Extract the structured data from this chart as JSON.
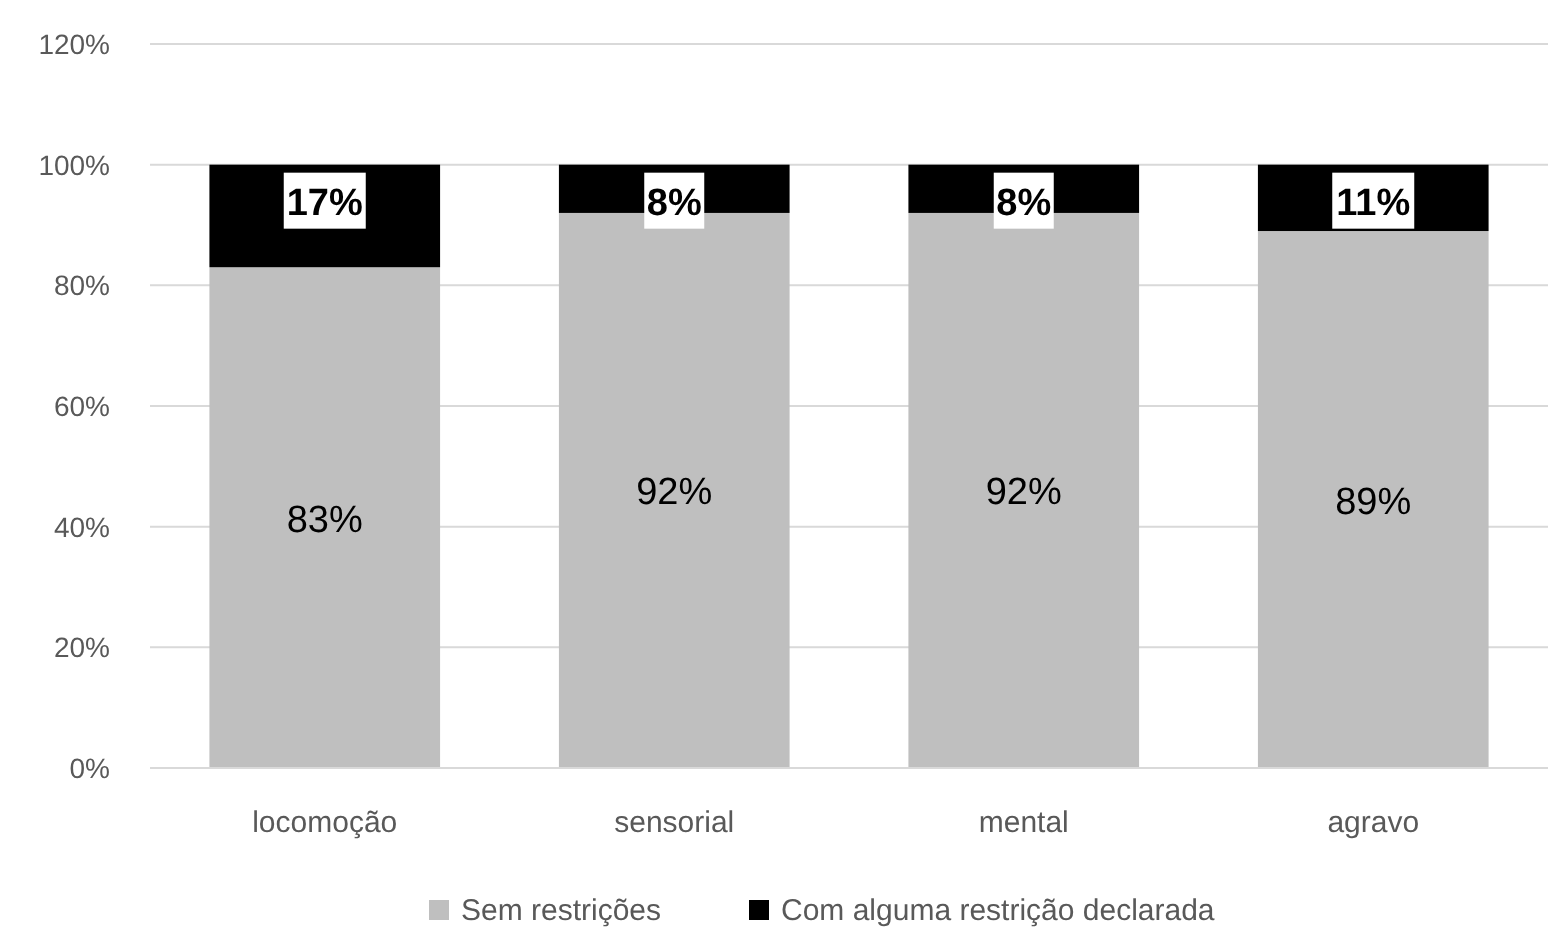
{
  "chart_data": {
    "type": "bar",
    "stacked": true,
    "categories": [
      "locomoção",
      "sensorial",
      "mental",
      "agravo"
    ],
    "series": [
      {
        "name": "Sem restrições",
        "color": "#bfbfbf",
        "values": [
          83,
          92,
          92,
          89
        ],
        "value_labels": [
          "83%",
          "92%",
          "92%",
          "89%"
        ]
      },
      {
        "name": "Com alguma restrição declarada",
        "color": "#000000",
        "values": [
          17,
          8,
          8,
          11
        ],
        "value_labels": [
          "17%",
          "8%",
          "8%",
          "11%"
        ]
      }
    ],
    "ylim": [
      0,
      120
    ],
    "yticks": [
      {
        "value": 0,
        "label": "0%"
      },
      {
        "value": 20,
        "label": "20%"
      },
      {
        "value": 40,
        "label": "40%"
      },
      {
        "value": 60,
        "label": "60%"
      },
      {
        "value": 80,
        "label": "80%"
      },
      {
        "value": 100,
        "label": "100%"
      },
      {
        "value": 120,
        "label": "120%"
      }
    ],
    "grid": "y",
    "legend": "bottom"
  }
}
